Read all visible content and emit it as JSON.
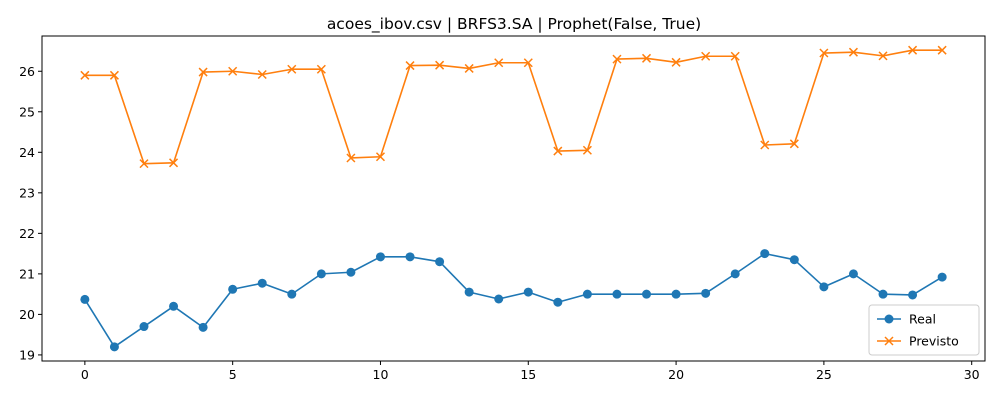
{
  "chart_data": {
    "type": "line",
    "title": "acoes_ibov.csv | BRFS3.SA | Prophet(False, True)",
    "xlabel": "",
    "ylabel": "",
    "xlim": [
      -1.45,
      30.45
    ],
    "ylim": [
      18.85,
      26.87
    ],
    "xticks": [
      0,
      5,
      10,
      15,
      20,
      25,
      30
    ],
    "yticks": [
      19,
      20,
      21,
      22,
      23,
      24,
      25,
      26
    ],
    "grid": false,
    "legend_position": "lower-right",
    "x": [
      0,
      1,
      2,
      3,
      4,
      5,
      6,
      7,
      8,
      9,
      10,
      11,
      12,
      13,
      14,
      15,
      16,
      17,
      18,
      19,
      20,
      21,
      22,
      23,
      24,
      25,
      26,
      27,
      28,
      29
    ],
    "series": [
      {
        "name": "Real",
        "color": "#1f77b4",
        "marker": "circle",
        "values": [
          20.37,
          19.2,
          19.7,
          20.2,
          19.68,
          20.62,
          20.77,
          20.5,
          21.0,
          21.04,
          21.42,
          21.42,
          21.3,
          20.55,
          20.38,
          20.55,
          20.3,
          20.5,
          20.5,
          20.5,
          20.5,
          20.52,
          21.0,
          21.5,
          21.35,
          20.68,
          21.0,
          20.5,
          20.48,
          20.92
        ]
      },
      {
        "name": "Previsto",
        "color": "#ff7f0e",
        "marker": "x",
        "values": [
          25.9,
          25.9,
          23.72,
          23.74,
          25.98,
          26.0,
          25.92,
          26.05,
          26.05,
          23.86,
          23.89,
          26.14,
          26.15,
          26.07,
          26.21,
          26.21,
          24.03,
          24.05,
          26.3,
          26.32,
          26.22,
          26.37,
          26.37,
          24.18,
          24.21,
          26.45,
          26.47,
          26.38,
          26.52,
          26.52
        ]
      }
    ]
  }
}
